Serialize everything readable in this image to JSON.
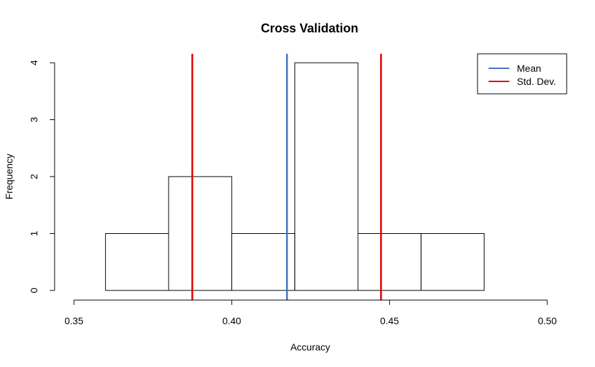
{
  "chart_data": {
    "type": "bar",
    "title": "Cross Validation",
    "xlabel": "Accuracy",
    "ylabel": "Frequency",
    "xlim": [
      0.35,
      0.5
    ],
    "ylim": [
      0,
      4
    ],
    "x_ticks": [
      "0.35",
      "0.40",
      "0.45",
      "0.50"
    ],
    "y_ticks": [
      "0",
      "1",
      "2",
      "3",
      "4"
    ],
    "bins": [
      {
        "start": 0.36,
        "end": 0.38,
        "count": 1
      },
      {
        "start": 0.38,
        "end": 0.4,
        "count": 2
      },
      {
        "start": 0.4,
        "end": 0.42,
        "count": 1
      },
      {
        "start": 0.42,
        "end": 0.44,
        "count": 4
      },
      {
        "start": 0.44,
        "end": 0.46,
        "count": 1
      },
      {
        "start": 0.46,
        "end": 0.48,
        "count": 1
      }
    ],
    "vlines": [
      {
        "name": "Mean",
        "x": 0.4175,
        "color": "#4472C4"
      },
      {
        "name": "Std. Dev.",
        "x": 0.3875,
        "color": "#E00000"
      },
      {
        "name": "Std. Dev.",
        "x": 0.4473,
        "color": "#E00000"
      }
    ],
    "legend": {
      "position": "top-right",
      "entries": [
        {
          "label": "Mean",
          "color": "#4472C4"
        },
        {
          "label": "Std. Dev.",
          "color": "#E00000"
        }
      ]
    },
    "grid": false
  }
}
